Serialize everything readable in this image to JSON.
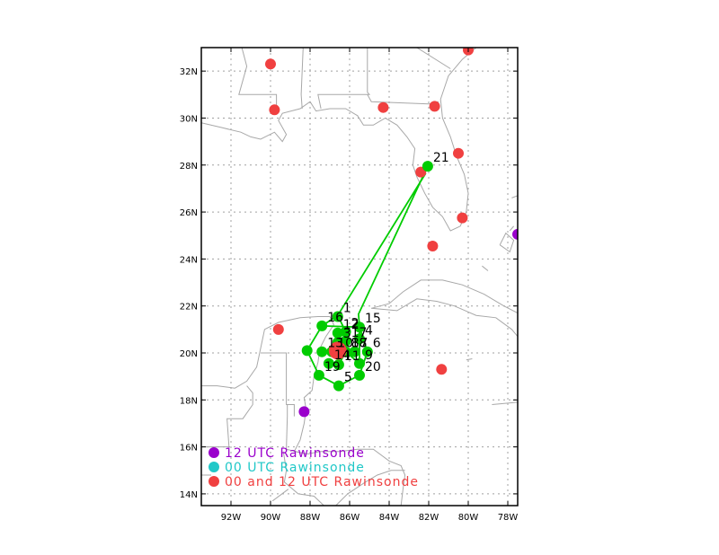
{
  "map": {
    "lon_range": [
      -93.5,
      -77.5
    ],
    "lat_range": [
      13.5,
      33.0
    ],
    "grid": true
  },
  "axes": {
    "x_ticks": [
      {
        "lon": -92,
        "label": "92W"
      },
      {
        "lon": -90,
        "label": "90W"
      },
      {
        "lon": -88,
        "label": "88W"
      },
      {
        "lon": -86,
        "label": "86W"
      },
      {
        "lon": -84,
        "label": "84W"
      },
      {
        "lon": -82,
        "label": "82W"
      },
      {
        "lon": -80,
        "label": "80W"
      },
      {
        "lon": -78,
        "label": "78W"
      }
    ],
    "y_ticks": [
      {
        "lat": 14,
        "label": "14N"
      },
      {
        "lat": 16,
        "label": "16N"
      },
      {
        "lat": 18,
        "label": "18N"
      },
      {
        "lat": 20,
        "label": "20N"
      },
      {
        "lat": 22,
        "label": "22N"
      },
      {
        "lat": 24,
        "label": "24N"
      },
      {
        "lat": 26,
        "label": "26N"
      },
      {
        "lat": 28,
        "label": "28N"
      },
      {
        "lat": 30,
        "label": "30N"
      },
      {
        "lat": 32,
        "label": "32N"
      }
    ]
  },
  "colors": {
    "rawinsonde_00_12": "#f04040",
    "rawinsonde_12": "#9a00cc",
    "rawinsonde_00": "#20c8c8",
    "dropsonde": "#00cc00",
    "coast": "#a8a8a8",
    "grid": "#a0a0a0"
  },
  "rawinsondes": {
    "both": [
      {
        "lon": -80.0,
        "lat": 32.9
      },
      {
        "lon": -90.0,
        "lat": 32.3
      },
      {
        "lon": -89.8,
        "lat": 30.35
      },
      {
        "lon": -84.3,
        "lat": 30.45
      },
      {
        "lon": -81.7,
        "lat": 30.5
      },
      {
        "lon": -80.5,
        "lat": 28.5
      },
      {
        "lon": -82.4,
        "lat": 27.7
      },
      {
        "lon": -80.3,
        "lat": 25.75
      },
      {
        "lon": -81.8,
        "lat": 24.55
      },
      {
        "lon": -89.6,
        "lat": 21.0
      },
      {
        "lon": -81.35,
        "lat": 19.3
      }
    ],
    "utc12": [
      {
        "lon": -77.5,
        "lat": 25.05
      },
      {
        "lon": -88.3,
        "lat": 17.5
      }
    ]
  },
  "storm_center": {
    "lon": -86.6,
    "lat": 20.1
  },
  "dropsondes": [
    {
      "id": "1",
      "lon": -86.6,
      "lat": 21.55
    },
    {
      "id": "2",
      "lon": -86.2,
      "lat": 20.9
    },
    {
      "id": "3",
      "lon": -86.6,
      "lat": 20.45
    },
    {
      "id": "4",
      "lon": -85.5,
      "lat": 20.6
    },
    {
      "id": "5",
      "lon": -86.55,
      "lat": 18.6
    },
    {
      "id": "6",
      "lon": -85.1,
      "lat": 20.05
    },
    {
      "id": "7",
      "lon": -85.75,
      "lat": 20.05
    },
    {
      "id": "8",
      "lon": -86.2,
      "lat": 20.05
    },
    {
      "id": "9",
      "lon": -85.5,
      "lat": 19.55
    },
    {
      "id": "10",
      "lon": -86.9,
      "lat": 20.05
    },
    {
      "id": "11",
      "lon": -86.55,
      "lat": 19.5
    },
    {
      "id": "12",
      "lon": -86.6,
      "lat": 20.85
    },
    {
      "id": "13",
      "lon": -87.4,
      "lat": 20.05
    },
    {
      "id": "14",
      "lon": -87.05,
      "lat": 19.55
    },
    {
      "id": "15",
      "lon": -85.5,
      "lat": 21.1
    },
    {
      "id": "16",
      "lon": -87.4,
      "lat": 21.15
    },
    {
      "id": "17",
      "lon": -86.2,
      "lat": 20.5
    },
    {
      "id": "18",
      "lon": -86.2,
      "lat": 20.05
    },
    {
      "id": "19",
      "lon": -87.55,
      "lat": 19.05
    },
    {
      "id": "20",
      "lon": -85.5,
      "lat": 19.05
    },
    {
      "id": "21",
      "lon": -82.05,
      "lat": 27.95
    },
    {
      "id": "",
      "lon": -88.15,
      "lat": 20.1
    },
    {
      "id": "",
      "lon": -86.6,
      "lat": 20.1
    }
  ],
  "flight_track": [
    [
      -82.15,
      27.65
    ],
    [
      -86.6,
      21.6
    ],
    [
      -87.4,
      21.15
    ],
    [
      -85.5,
      21.1
    ],
    [
      -85.1,
      20.05
    ],
    [
      -85.5,
      19.05
    ],
    [
      -86.55,
      18.6
    ],
    [
      -87.55,
      19.05
    ],
    [
      -88.15,
      20.1
    ],
    [
      -87.4,
      21.15
    ],
    [
      -86.6,
      21.6
    ],
    [
      -86.2,
      20.9
    ],
    [
      -86.2,
      20.05
    ],
    [
      -86.55,
      19.5
    ],
    [
      -86.2,
      20.05
    ],
    [
      -85.5,
      19.55
    ],
    [
      -85.5,
      21.1
    ],
    [
      -85.55,
      21.65
    ],
    [
      -82.3,
      27.5
    ]
  ],
  "legend": [
    {
      "label": "12 UTC Rawinsonde",
      "color": "#9a00cc"
    },
    {
      "label": "00 UTC Rawinsonde",
      "color": "#20c8c8"
    },
    {
      "label": "00 and 12 UTC Rawinsonde",
      "color": "#f04040"
    }
  ],
  "coastlines": [
    [
      [
        -93.5,
        29.8
      ],
      [
        -92.5,
        29.6
      ],
      [
        -91.5,
        29.4
      ],
      [
        -91.0,
        29.2
      ],
      [
        -90.5,
        29.1
      ],
      [
        -89.8,
        29.4
      ],
      [
        -89.4,
        29.0
      ],
      [
        -89.2,
        29.3
      ],
      [
        -89.6,
        29.9
      ],
      [
        -89.4,
        30.2
      ],
      [
        -88.5,
        30.4
      ],
      [
        -88.0,
        30.7
      ],
      [
        -87.7,
        30.3
      ],
      [
        -87.0,
        30.4
      ],
      [
        -86.2,
        30.4
      ],
      [
        -85.6,
        30.1
      ],
      [
        -85.3,
        29.7
      ],
      [
        -84.8,
        29.7
      ],
      [
        -84.2,
        30.0
      ],
      [
        -83.6,
        29.7
      ],
      [
        -83.1,
        29.2
      ],
      [
        -82.7,
        28.7
      ],
      [
        -82.8,
        28.0
      ],
      [
        -82.6,
        27.5
      ],
      [
        -82.2,
        26.8
      ],
      [
        -81.8,
        26.2
      ],
      [
        -81.3,
        25.8
      ],
      [
        -80.9,
        25.2
      ],
      [
        -80.4,
        25.4
      ],
      [
        -80.1,
        26.0
      ],
      [
        -80.0,
        26.8
      ],
      [
        -80.2,
        27.6
      ],
      [
        -80.6,
        28.4
      ],
      [
        -80.9,
        29.2
      ],
      [
        -81.3,
        30.0
      ],
      [
        -81.4,
        30.8
      ],
      [
        -81.0,
        31.8
      ],
      [
        -80.3,
        32.5
      ],
      [
        -79.6,
        33.0
      ]
    ],
    [
      [
        -93.5,
        18.6
      ],
      [
        -92.7,
        18.6
      ],
      [
        -91.8,
        18.5
      ],
      [
        -91.2,
        18.8
      ],
      [
        -90.7,
        19.4
      ],
      [
        -90.5,
        20.2
      ],
      [
        -90.3,
        21.0
      ],
      [
        -89.6,
        21.3
      ],
      [
        -88.5,
        21.5
      ],
      [
        -87.6,
        21.55
      ],
      [
        -87.0,
        21.55
      ],
      [
        -86.8,
        21.2
      ],
      [
        -87.2,
        20.7
      ],
      [
        -87.5,
        20.2
      ],
      [
        -87.6,
        19.6
      ],
      [
        -87.8,
        19.0
      ],
      [
        -87.9,
        18.4
      ],
      [
        -88.3,
        18.1
      ],
      [
        -88.2,
        17.6
      ],
      [
        -88.3,
        17.0
      ],
      [
        -88.5,
        16.3
      ],
      [
        -88.8,
        15.8
      ],
      [
        -88.1,
        15.7
      ],
      [
        -87.5,
        15.8
      ],
      [
        -86.5,
        15.8
      ],
      [
        -85.6,
        15.9
      ],
      [
        -84.8,
        15.9
      ],
      [
        -84.0,
        15.4
      ],
      [
        -83.4,
        15.2
      ],
      [
        -83.2,
        14.8
      ],
      [
        -83.3,
        14.2
      ],
      [
        -83.4,
        13.5
      ]
    ],
    [
      [
        -84.9,
        21.9
      ],
      [
        -84.0,
        22.1
      ],
      [
        -83.3,
        22.6
      ],
      [
        -82.4,
        23.1
      ],
      [
        -81.3,
        23.1
      ],
      [
        -80.3,
        22.9
      ],
      [
        -79.2,
        22.5
      ],
      [
        -78.2,
        22.0
      ],
      [
        -77.5,
        21.7
      ]
    ],
    [
      [
        -84.9,
        21.9
      ],
      [
        -83.6,
        21.8
      ],
      [
        -82.6,
        22.3
      ],
      [
        -81.6,
        22.2
      ],
      [
        -80.7,
        22.0
      ],
      [
        -79.6,
        21.6
      ],
      [
        -78.6,
        21.5
      ],
      [
        -77.8,
        21.0
      ],
      [
        -77.5,
        20.7
      ]
    ],
    [
      [
        -81.4,
        19.25
      ],
      [
        -81.1,
        19.35
      ]
    ],
    [
      [
        -80.1,
        19.7
      ],
      [
        -79.8,
        19.75
      ]
    ],
    [
      [
        -78.4,
        24.6
      ],
      [
        -77.9,
        24.3
      ],
      [
        -77.7,
        24.8
      ],
      [
        -78.1,
        25.1
      ],
      [
        -78.4,
        24.6
      ]
    ],
    [
      [
        -77.8,
        26.6
      ],
      [
        -77.5,
        26.7
      ]
    ],
    [
      [
        -79.3,
        23.7
      ],
      [
        -79.0,
        23.5
      ]
    ],
    [
      [
        -77.9,
        25.2
      ],
      [
        -77.7,
        25.4
      ]
    ],
    [
      [
        -78.8,
        17.8
      ],
      [
        -77.5,
        17.9
      ]
    ],
    [
      [
        -93.5,
        14.8
      ],
      [
        -93.0,
        14.8
      ]
    ]
  ],
  "borders": [
    [
      [
        -91.45,
        33.0
      ],
      [
        -91.2,
        32.2
      ],
      [
        -91.6,
        31.0
      ],
      [
        -89.7,
        31.0
      ],
      [
        -89.7,
        30.2
      ]
    ],
    [
      [
        -88.35,
        33.0
      ],
      [
        -88.45,
        31.0
      ],
      [
        -88.4,
        30.4
      ]
    ],
    [
      [
        -85.1,
        33.0
      ],
      [
        -85.1,
        31.1
      ],
      [
        -85.0,
        31.0
      ],
      [
        -87.6,
        31.0
      ],
      [
        -87.45,
        30.4
      ]
    ],
    [
      [
        -85.1,
        31.0
      ],
      [
        -84.9,
        30.7
      ],
      [
        -82.0,
        30.6
      ],
      [
        -81.5,
        30.7
      ]
    ],
    [
      [
        -80.9,
        32.1
      ],
      [
        -82.6,
        33.0
      ]
    ],
    [
      [
        -90.5,
        20.0
      ],
      [
        -89.2,
        20.0
      ],
      [
        -89.2,
        17.8
      ],
      [
        -88.8,
        17.8
      ],
      [
        -88.8,
        17.3
      ]
    ],
    [
      [
        -89.15,
        17.8
      ],
      [
        -89.15,
        17.3
      ],
      [
        -89.2,
        15.9
      ],
      [
        -88.2,
        15.7
      ]
    ],
    [
      [
        -93.5,
        16.0
      ],
      [
        -92.1,
        16.0
      ],
      [
        -92.2,
        17.2
      ],
      [
        -91.4,
        17.2
      ],
      [
        -90.9,
        17.8
      ],
      [
        -90.9,
        18.3
      ],
      [
        -91.2,
        18.6
      ]
    ],
    [
      [
        -89.35,
        15.8
      ],
      [
        -89.2,
        15.0
      ],
      [
        -89.3,
        14.5
      ],
      [
        -88.6,
        14.0
      ],
      [
        -87.8,
        13.9
      ],
      [
        -87.3,
        13.5
      ]
    ],
    [
      [
        -89.1,
        14.2
      ],
      [
        -89.9,
        13.7
      ]
    ],
    [
      [
        -86.7,
        13.5
      ],
      [
        -86.1,
        14.0
      ],
      [
        -85.2,
        14.5
      ],
      [
        -84.6,
        14.8
      ],
      [
        -83.9,
        15.0
      ],
      [
        -83.2,
        15.0
      ]
    ]
  ]
}
